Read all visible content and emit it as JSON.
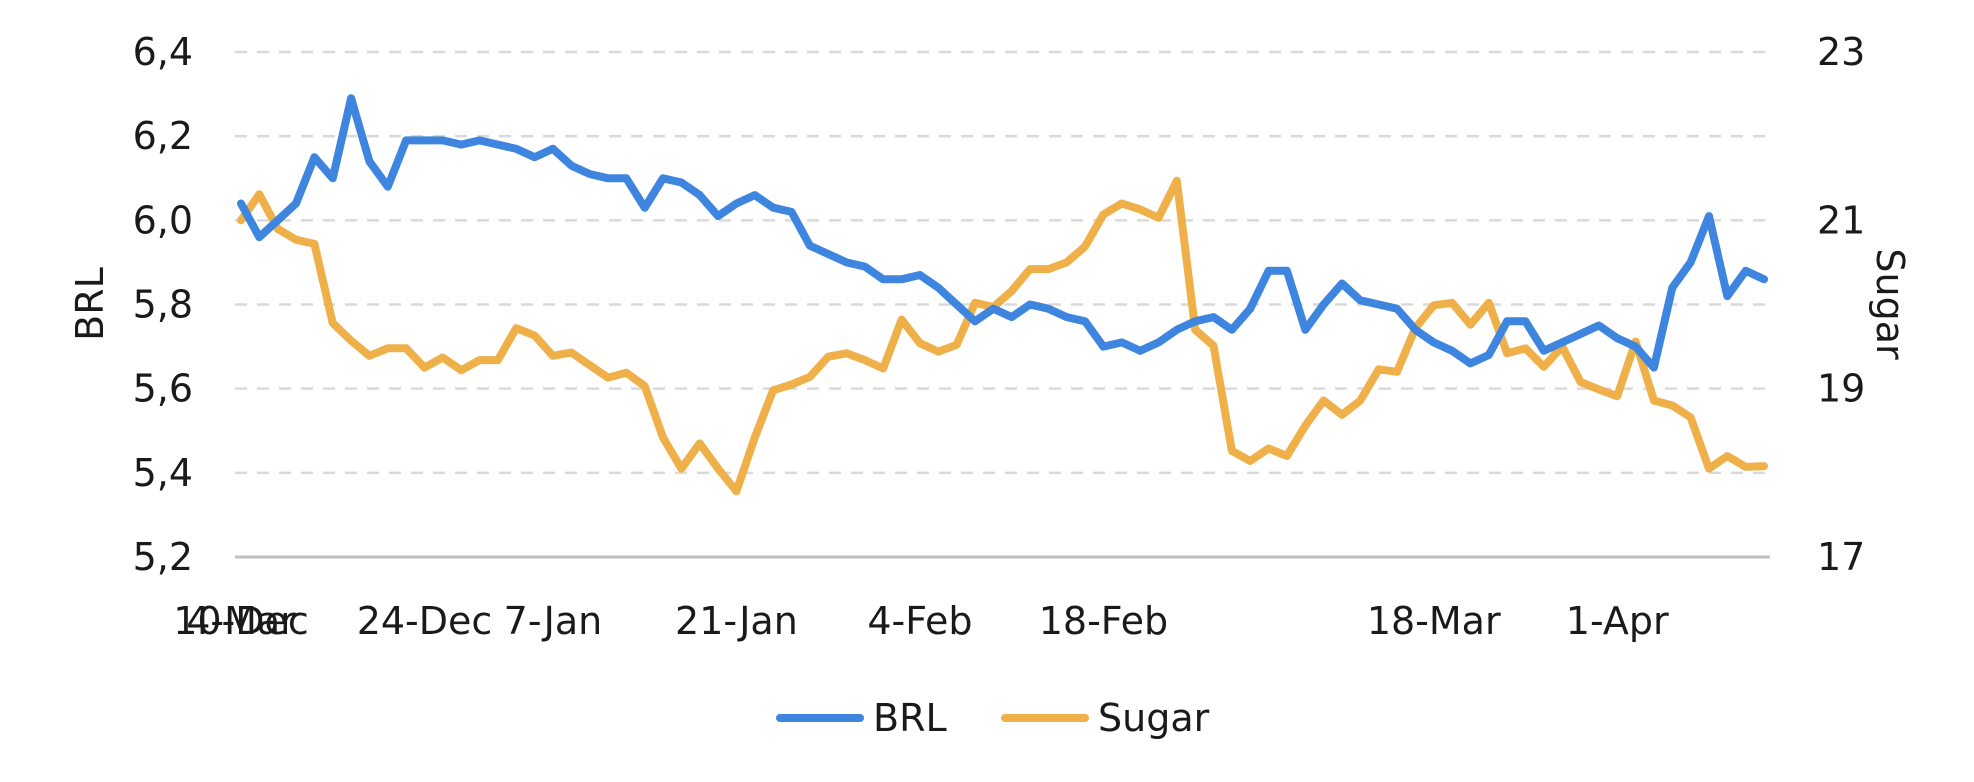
{
  "chart_data": {
    "type": "line",
    "title": "",
    "x_tick_labels": [
      "10-Dec",
      "24-Dec",
      "7-Jan",
      "21-Jan",
      "4-Feb",
      "18-Feb",
      "4-Mar",
      "18-Mar",
      "1-Apr"
    ],
    "y_left": {
      "label": "BRL",
      "range": [
        5.2,
        6.4
      ],
      "ticks": [
        "6,4",
        "6,2",
        "6,0",
        "5,8",
        "5,6",
        "5,4",
        "5,2"
      ]
    },
    "y_right": {
      "label": "Sugar",
      "range": [
        17,
        23
      ],
      "ticks": [
        "23",
        "21",
        "19",
        "17"
      ]
    },
    "grid": "horizontal dashed",
    "legend_position": "bottom",
    "colors": {
      "BRL": "#3d85de",
      "Sugar": "#efb04a"
    },
    "series": [
      {
        "name": "BRL",
        "axis": "left",
        "x": [
          "10-Dec",
          "11-Dec",
          "12-Dec",
          "13-Dec",
          "16-Dec",
          "17-Dec",
          "18-Dec",
          "19-Dec",
          "20-Dec",
          "23-Dec",
          "24-Dec",
          "26-Dec",
          "27-Dec",
          "30-Dec",
          "2-Jan",
          "3-Jan",
          "6-Jan",
          "7-Jan",
          "8-Jan",
          "9-Jan",
          "10-Jan",
          "13-Jan",
          "14-Jan",
          "15-Jan",
          "16-Jan",
          "17-Jan",
          "20-Jan",
          "21-Jan",
          "22-Jan",
          "23-Jan",
          "24-Jan",
          "27-Jan",
          "28-Jan",
          "29-Jan",
          "30-Jan",
          "31-Jan",
          "3-Feb",
          "4-Feb",
          "5-Feb",
          "6-Feb",
          "7-Feb",
          "10-Feb",
          "11-Feb",
          "12-Feb",
          "13-Feb",
          "14-Feb",
          "17-Feb",
          "18-Feb",
          "19-Feb",
          "20-Feb",
          "21-Feb",
          "24-Feb",
          "25-Feb",
          "26-Feb",
          "27-Feb",
          "28-Feb",
          "5-Mar",
          "6-Mar",
          "7-Mar",
          "10-Mar",
          "11-Mar",
          "12-Mar",
          "13-Mar",
          "14-Mar",
          "17-Mar",
          "18-Mar",
          "19-Mar",
          "20-Mar",
          "21-Mar",
          "24-Mar",
          "25-Mar",
          "26-Mar",
          "27-Mar",
          "28-Mar",
          "31-Mar",
          "1-Apr",
          "2-Apr",
          "3-Apr",
          "4-Apr",
          "7-Apr",
          "8-Apr",
          "9-Apr",
          "10-Apr",
          "11-Apr"
        ],
        "values": [
          6.04,
          5.96,
          6.0,
          6.04,
          6.15,
          6.1,
          6.29,
          6.14,
          6.08,
          6.19,
          6.19,
          6.19,
          6.18,
          6.19,
          6.18,
          6.17,
          6.15,
          6.17,
          6.13,
          6.11,
          6.1,
          6.1,
          6.03,
          6.1,
          6.09,
          6.06,
          6.01,
          6.04,
          6.06,
          6.03,
          6.02,
          5.94,
          5.92,
          5.9,
          5.89,
          5.86,
          5.86,
          5.87,
          5.84,
          5.8,
          5.76,
          5.79,
          5.77,
          5.8,
          5.79,
          5.77,
          5.76,
          5.7,
          5.71,
          5.69,
          5.71,
          5.74,
          5.76,
          5.77,
          5.74,
          5.79,
          5.88,
          5.88,
          5.74,
          5.8,
          5.85,
          5.81,
          5.8,
          5.79,
          5.74,
          5.71,
          5.69,
          5.66,
          5.68,
          5.76,
          5.76,
          5.69,
          5.71,
          5.73,
          5.75,
          5.72,
          5.7,
          5.65,
          5.84,
          5.9,
          6.01,
          5.82,
          5.88,
          5.86
        ]
      },
      {
        "name": "Sugar",
        "axis": "right",
        "x": [
          "10-Dec",
          "11-Dec",
          "12-Dec",
          "13-Dec",
          "16-Dec",
          "17-Dec",
          "18-Dec",
          "19-Dec",
          "20-Dec",
          "23-Dec",
          "24-Dec",
          "26-Dec",
          "27-Dec",
          "30-Dec",
          "2-Jan",
          "3-Jan",
          "6-Jan",
          "7-Jan",
          "8-Jan",
          "9-Jan",
          "10-Jan",
          "13-Jan",
          "14-Jan",
          "15-Jan",
          "16-Jan",
          "17-Jan",
          "20-Jan",
          "21-Jan",
          "22-Jan",
          "23-Jan",
          "24-Jan",
          "27-Jan",
          "28-Jan",
          "29-Jan",
          "30-Jan",
          "31-Jan",
          "3-Feb",
          "4-Feb",
          "5-Feb",
          "6-Feb",
          "7-Feb",
          "10-Feb",
          "11-Feb",
          "12-Feb",
          "13-Feb",
          "14-Feb",
          "17-Feb",
          "18-Feb",
          "19-Feb",
          "20-Feb",
          "21-Feb",
          "24-Feb",
          "25-Feb",
          "26-Feb",
          "27-Feb",
          "28-Feb",
          "5-Mar",
          "6-Mar",
          "7-Mar",
          "10-Mar",
          "11-Mar",
          "12-Mar",
          "13-Mar",
          "14-Mar",
          "17-Mar",
          "18-Mar",
          "19-Mar",
          "20-Mar",
          "21-Mar",
          "24-Mar",
          "25-Mar",
          "26-Mar",
          "27-Mar",
          "28-Mar",
          "31-Mar",
          "1-Apr",
          "2-Apr",
          "3-Apr",
          "4-Apr",
          "7-Apr",
          "8-Apr",
          "9-Apr",
          "10-Apr",
          "11-Apr"
        ],
        "values": [
          21.0,
          21.31,
          20.9,
          20.77,
          20.72,
          19.78,
          19.57,
          19.39,
          19.48,
          19.48,
          19.25,
          19.37,
          19.22,
          19.34,
          19.34,
          19.72,
          19.63,
          19.39,
          19.43,
          19.28,
          19.13,
          19.19,
          19.03,
          18.42,
          18.05,
          18.35,
          18.05,
          17.78,
          18.42,
          18.98,
          19.05,
          19.14,
          19.38,
          19.42,
          19.34,
          19.24,
          19.82,
          19.54,
          19.44,
          19.52,
          20.02,
          19.97,
          20.16,
          20.42,
          20.42,
          20.5,
          20.69,
          21.07,
          21.2,
          21.13,
          21.03,
          21.47,
          19.7,
          19.51,
          18.26,
          18.14,
          18.29,
          18.2,
          18.56,
          18.86,
          18.69,
          18.86,
          19.23,
          19.2,
          19.72,
          19.99,
          20.02,
          19.76,
          20.02,
          19.42,
          19.48,
          19.26,
          19.5,
          19.08,
          18.99,
          18.91,
          19.56,
          18.86,
          18.8,
          18.66,
          18.05,
          18.2,
          18.07,
          18.08
        ]
      }
    ]
  }
}
